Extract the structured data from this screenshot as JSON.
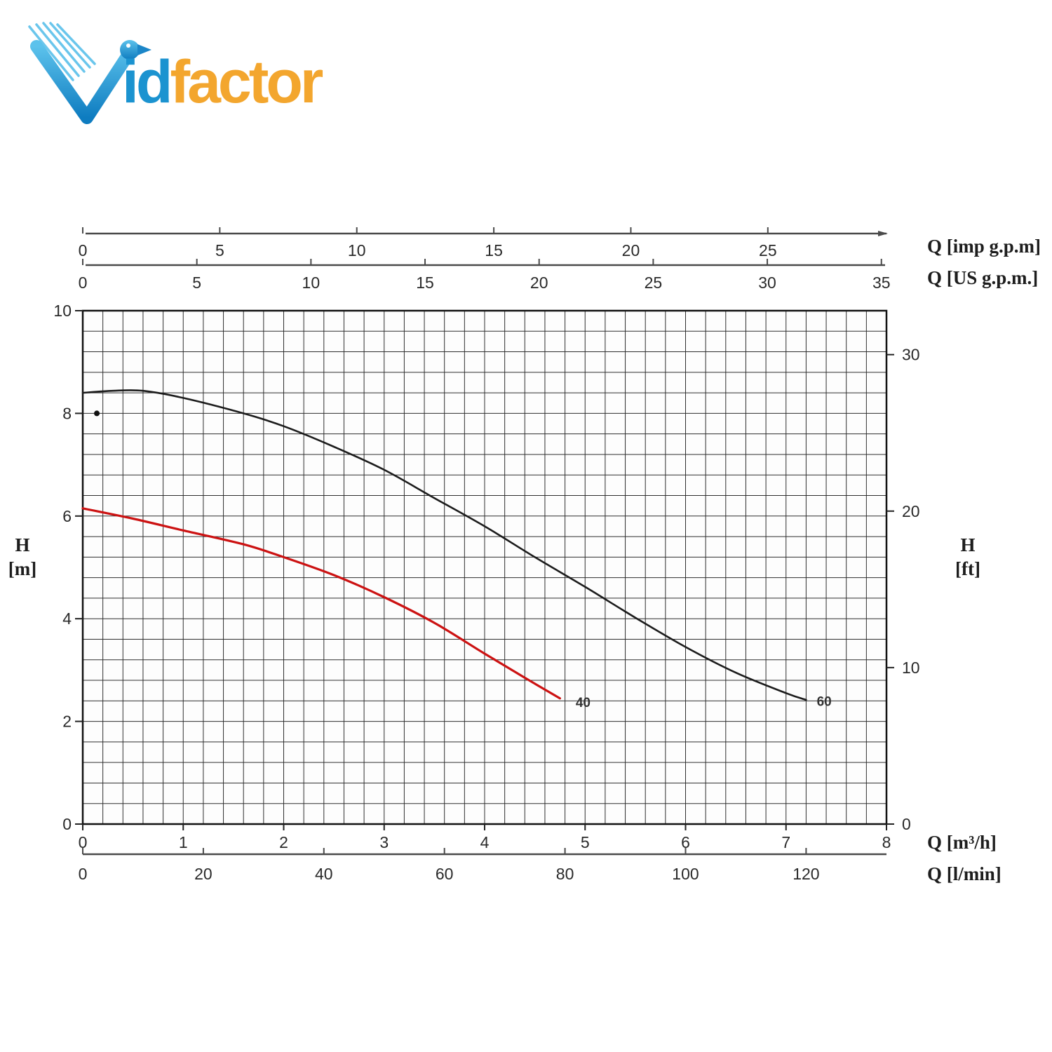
{
  "logo": {
    "id_text": "id",
    "factor_text": "factor",
    "blue": "#1b93d0",
    "orange": "#f3a62e"
  },
  "labels": {
    "q_imp": "Q [imp g.p.m]",
    "q_us": "Q [US g.p.m.]",
    "q_m3h": "Q [m³/h]",
    "q_lmin": "Q [l/min]",
    "h_m_line1": "H",
    "h_m_line2": "[m]",
    "h_ft_line1": "H",
    "h_ft_line2": "[ft]"
  },
  "chart_data": {
    "type": "line",
    "title": "Pump head vs flow performance curves",
    "xlabel": "Q [m³/h]",
    "ylabel": "H [m]",
    "grid": {
      "x_divisions": 40,
      "y_divisions": 25,
      "line_color": "#2e2e2e",
      "border_color": "#111111"
    },
    "axes": {
      "bottom_primary": {
        "label": "Q [m³/h]",
        "min": 0,
        "max": 8,
        "ticks": [
          0,
          1,
          2,
          3,
          4,
          5,
          6,
          7,
          8
        ]
      },
      "bottom_secondary": {
        "label": "Q [l/min]",
        "ticks": [
          0,
          20,
          40,
          60,
          80,
          100,
          120
        ],
        "units_per_m3h": 16.6667
      },
      "top_primary": {
        "label": "Q [imp g.p.m]",
        "ticks": [
          0,
          5,
          10,
          15,
          20,
          25
        ],
        "units_per_m3h": 3.6662
      },
      "top_secondary": {
        "label": "Q [US g.p.m.]",
        "ticks": [
          0,
          5,
          10,
          15,
          20,
          25,
          30,
          35
        ],
        "units_per_m3h": 4.4029
      },
      "left": {
        "label": "H [m]",
        "min": 0,
        "max": 10,
        "ticks": [
          0,
          2,
          4,
          6,
          8,
          10
        ]
      },
      "right": {
        "label": "H [ft]",
        "ticks": [
          0,
          10,
          20,
          30
        ],
        "units_per_m": 3.2808
      }
    },
    "series": [
      {
        "name": "60",
        "color": "#1c1c1c",
        "width": 2.6,
        "label_at": [
          7.38,
          2.3
        ],
        "points": [
          [
            0,
            8.4
          ],
          [
            0.3,
            8.44
          ],
          [
            0.6,
            8.44
          ],
          [
            1.0,
            8.3
          ],
          [
            1.6,
            8.0
          ],
          [
            2.0,
            7.75
          ],
          [
            2.5,
            7.35
          ],
          [
            3.0,
            6.9
          ],
          [
            3.5,
            6.35
          ],
          [
            4.0,
            5.8
          ],
          [
            4.5,
            5.2
          ],
          [
            5.0,
            4.62
          ],
          [
            5.5,
            4.02
          ],
          [
            6.0,
            3.45
          ],
          [
            6.5,
            2.95
          ],
          [
            7.0,
            2.55
          ],
          [
            7.2,
            2.42
          ]
        ]
      },
      {
        "name": "40",
        "color": "#cc1212",
        "width": 3.2,
        "label_at": [
          4.98,
          2.28
        ],
        "points": [
          [
            0,
            6.15
          ],
          [
            0.5,
            5.95
          ],
          [
            1.0,
            5.72
          ],
          [
            1.6,
            5.45
          ],
          [
            2.0,
            5.2
          ],
          [
            2.5,
            4.85
          ],
          [
            3.0,
            4.42
          ],
          [
            3.5,
            3.92
          ],
          [
            4.0,
            3.32
          ],
          [
            4.4,
            2.85
          ],
          [
            4.75,
            2.45
          ]
        ]
      }
    ],
    "marker": {
      "q": 0.14,
      "h": 8.0,
      "r": 4,
      "color": "#111111"
    }
  }
}
